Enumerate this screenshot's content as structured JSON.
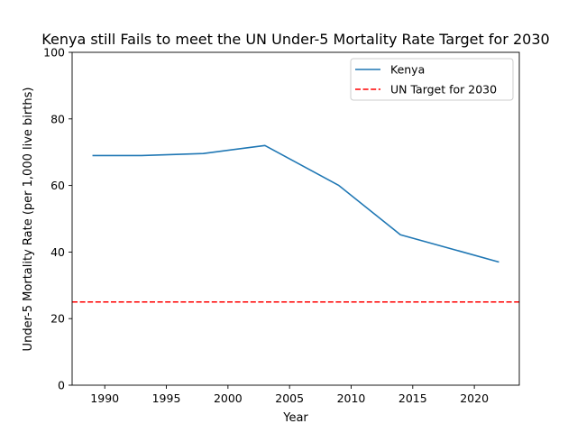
{
  "chart_data": {
    "type": "line",
    "title": "Kenya still Fails to meet the UN Under-5 Mortality Rate Target for 2030",
    "xlabel": "Year",
    "ylabel": "Under-5 Mortality Rate (per 1,000 live births)",
    "xlim": [
      1987.35,
      2023.65
    ],
    "ylim": [
      0,
      100
    ],
    "x_ticks": [
      1990,
      1995,
      2000,
      2005,
      2010,
      2015,
      2020
    ],
    "y_ticks": [
      0,
      20,
      40,
      60,
      80,
      100
    ],
    "grid": false,
    "legend_position": "top-right",
    "series": [
      {
        "name": "Kenya",
        "style": "solid",
        "color": "#1f77b4",
        "x": [
          1989,
          1993,
          1998,
          2003,
          2009,
          2014,
          2022
        ],
        "y": [
          69,
          69,
          69.6,
          72,
          60,
          45.2,
          37
        ]
      }
    ],
    "reference_lines": [
      {
        "name": "UN Target for 2030",
        "orientation": "horizontal",
        "style": "dashed",
        "color": "#ff0000",
        "y": 25
      }
    ]
  }
}
